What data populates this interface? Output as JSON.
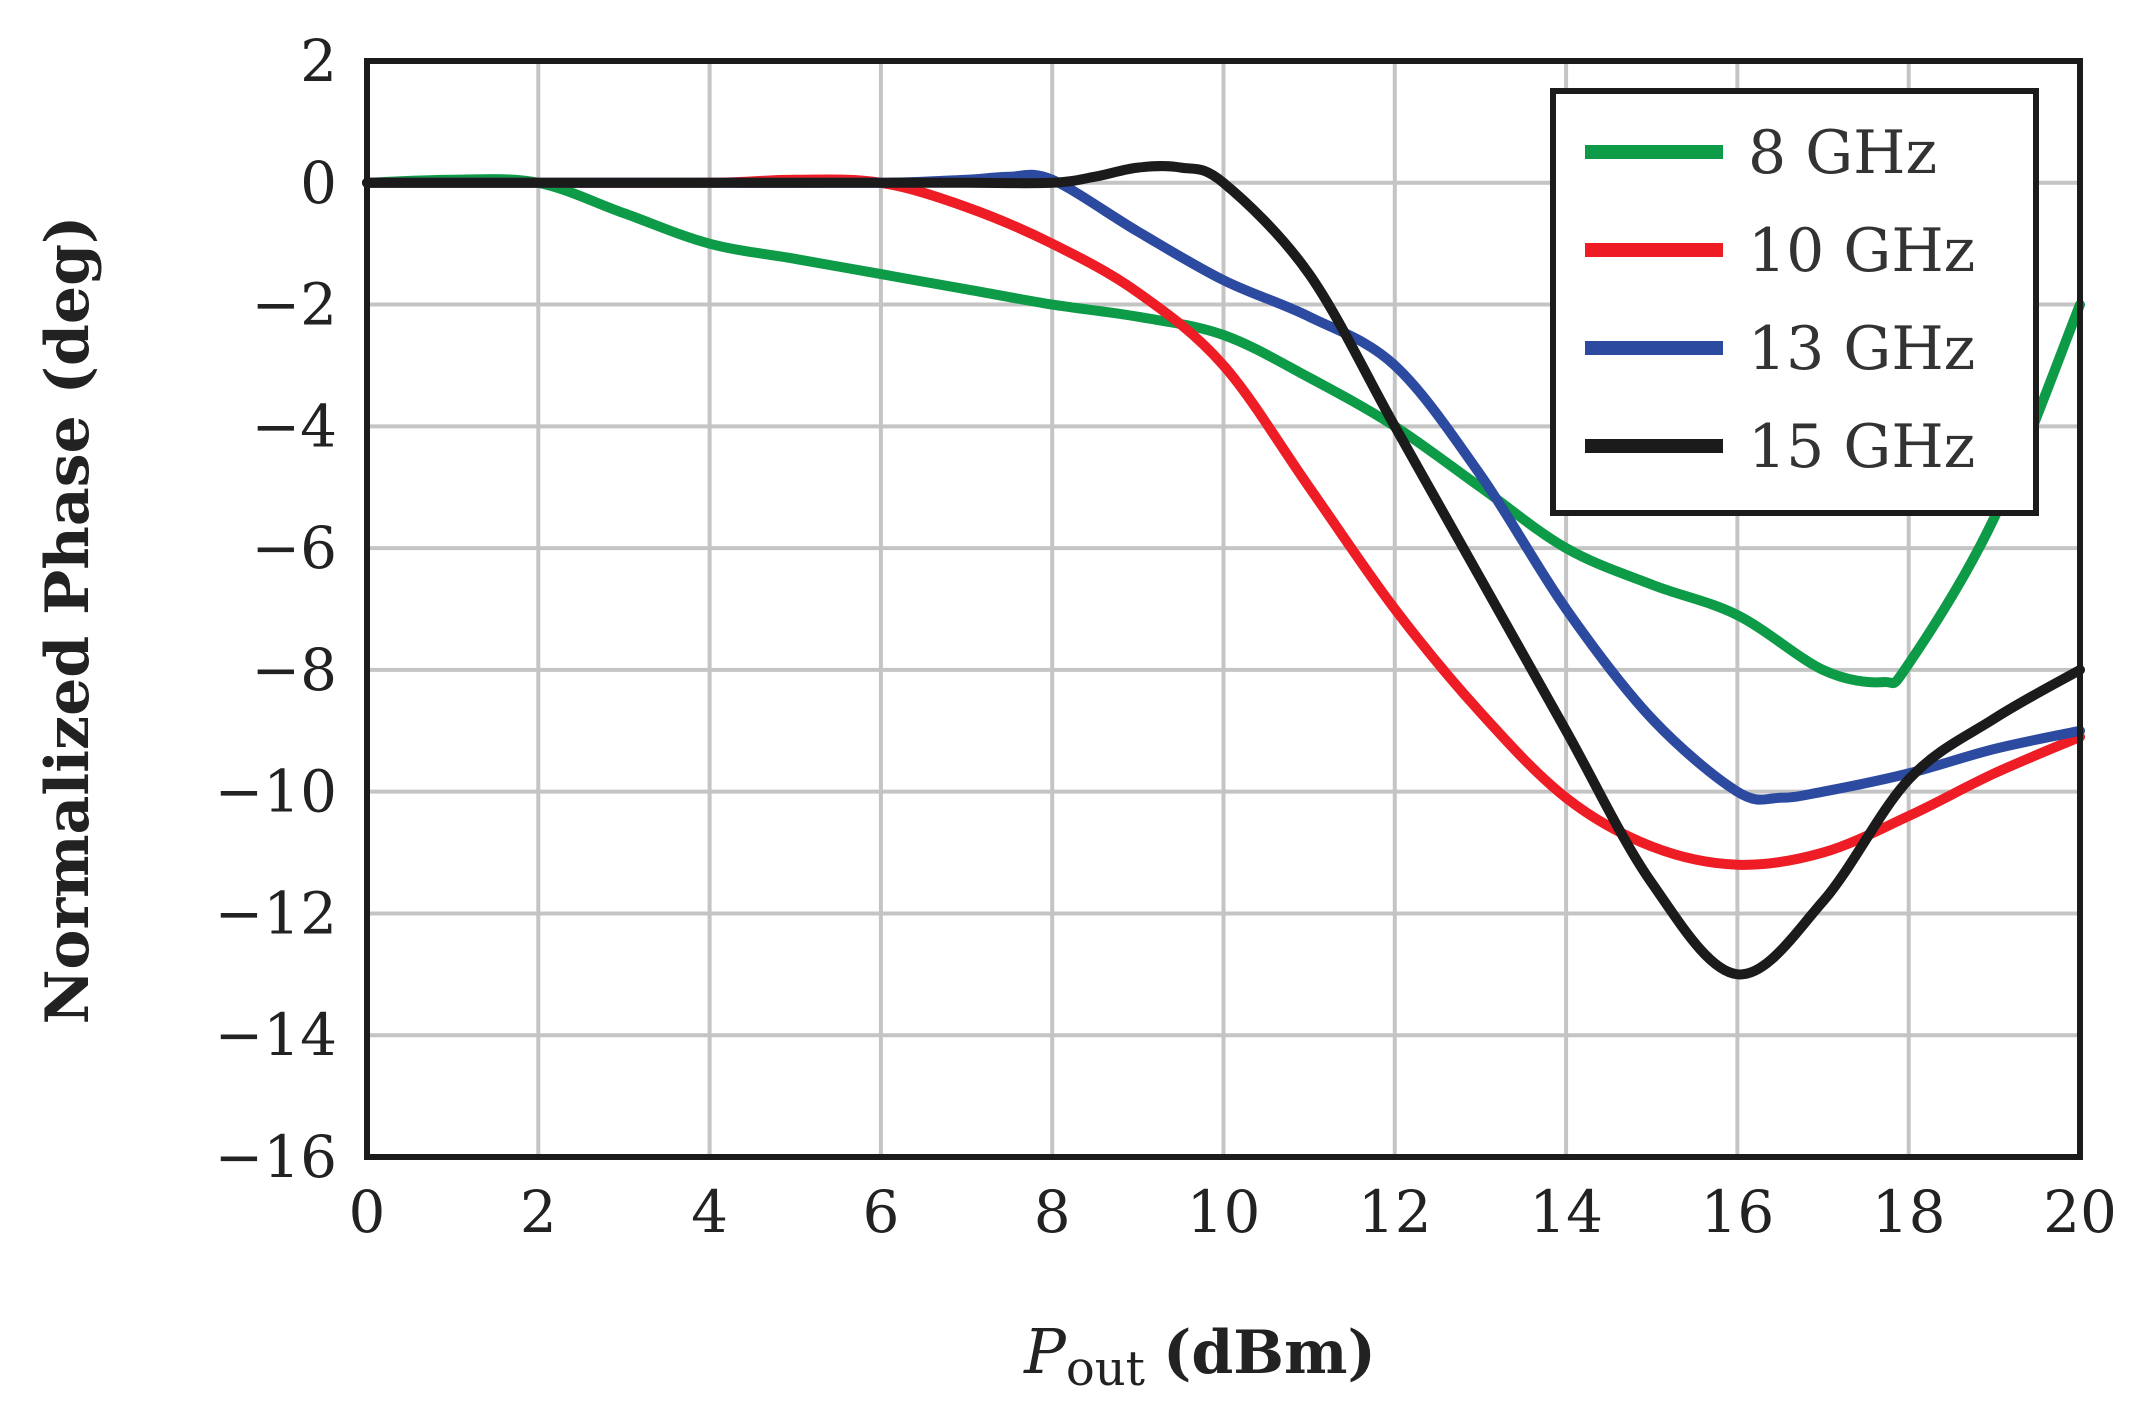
{
  "chart_data": {
    "type": "line",
    "title": "",
    "xlabel": {
      "symbol": "P",
      "subscript": "out",
      "unit": "(dBm)"
    },
    "ylabel": "Normalized Phase (deg)",
    "xlim": [
      0,
      20
    ],
    "ylim": [
      -16,
      2
    ],
    "xticks": [
      0,
      2,
      4,
      6,
      8,
      10,
      12,
      14,
      16,
      18,
      20
    ],
    "yticks": [
      2,
      0,
      -2,
      -4,
      -6,
      -8,
      -10,
      -12,
      -14,
      -16
    ],
    "xtick_labels": [
      "0",
      "2",
      "4",
      "6",
      "8",
      "10",
      "12",
      "14",
      "16",
      "18",
      "20"
    ],
    "ytick_labels": [
      "2",
      "0",
      "−2",
      "−4",
      "−6",
      "−8",
      "−10",
      "−12",
      "−14",
      "−16"
    ],
    "grid": true,
    "legend_position": "top-right",
    "series": [
      {
        "name": "8 GHz",
        "color": "#0e9b48",
        "x": [
          0,
          1,
          2,
          3,
          4,
          5,
          6,
          7,
          8,
          9,
          10,
          11,
          12,
          13,
          14,
          15,
          16,
          17,
          17.7,
          18,
          19,
          20
        ],
        "y": [
          0,
          0.05,
          0,
          -0.5,
          -1.0,
          -1.25,
          -1.5,
          -1.75,
          -2.0,
          -2.2,
          -2.5,
          -3.2,
          -4.0,
          -5.0,
          -6.0,
          -6.6,
          -7.1,
          -8.0,
          -8.2,
          -7.9,
          -5.5,
          -2.0
        ]
      },
      {
        "name": "10 GHz",
        "color": "#ee1c25",
        "x": [
          0,
          2,
          4,
          5,
          6,
          7,
          8,
          9,
          10,
          11,
          12,
          13,
          14,
          15,
          16,
          17,
          18,
          19,
          20
        ],
        "y": [
          0,
          0,
          0,
          0.05,
          0,
          -0.4,
          -1.0,
          -1.8,
          -3.0,
          -5.0,
          -7.0,
          -8.7,
          -10.1,
          -10.9,
          -11.2,
          -11.0,
          -10.4,
          -9.7,
          -9.1
        ]
      },
      {
        "name": "13 GHz",
        "color": "#2c4aa0",
        "x": [
          0,
          2,
          4,
          6,
          7,
          7.5,
          8,
          9,
          10,
          11,
          12,
          13,
          14,
          15,
          16,
          16.5,
          17,
          18,
          19,
          20
        ],
        "y": [
          0,
          0,
          0,
          0,
          0.05,
          0.1,
          0.05,
          -0.8,
          -1.6,
          -2.2,
          -3.0,
          -4.8,
          -7.0,
          -8.8,
          -10.0,
          -10.1,
          -10.0,
          -9.7,
          -9.3,
          -9.0
        ]
      },
      {
        "name": "15 GHz",
        "color": "#1b1b1b",
        "x": [
          0,
          2,
          4,
          6,
          7,
          8,
          8.5,
          9,
          9.5,
          10,
          11,
          12,
          13,
          14,
          15,
          16,
          17,
          18,
          19,
          20
        ],
        "y": [
          0,
          0,
          0,
          0,
          0,
          0,
          0.1,
          0.25,
          0.25,
          0,
          -1.5,
          -4.0,
          -6.5,
          -9.0,
          -11.5,
          -13.0,
          -11.8,
          -9.8,
          -8.8,
          -8.0
        ]
      }
    ]
  }
}
